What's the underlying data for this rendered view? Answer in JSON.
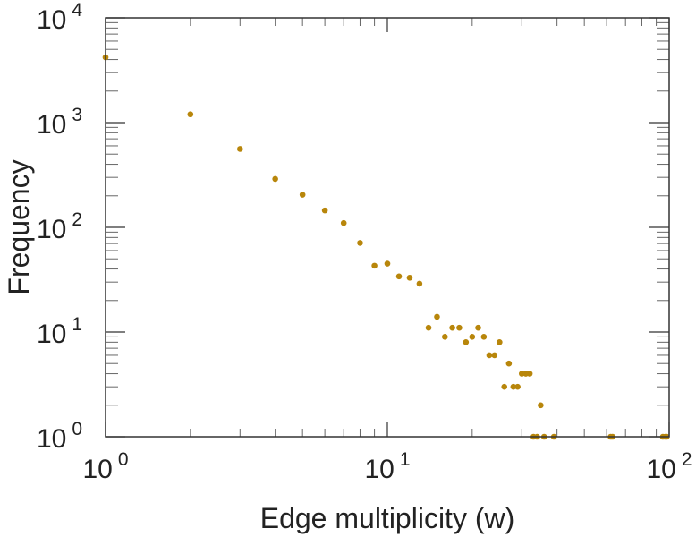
{
  "chart_data": {
    "type": "scatter",
    "xscale": "log",
    "yscale": "log",
    "xlim": [
      1,
      100
    ],
    "ylim": [
      1,
      10000
    ],
    "xlabel": "Edge multiplicity (w)",
    "ylabel": "Frequency",
    "x_ticks": [
      {
        "base": "10",
        "exp": "0",
        "value": 1
      },
      {
        "base": "10",
        "exp": "1",
        "value": 10
      },
      {
        "base": "10",
        "exp": "2",
        "value": 100
      }
    ],
    "y_ticks": [
      {
        "base": "10",
        "exp": "0",
        "value": 1
      },
      {
        "base": "10",
        "exp": "1",
        "value": 10
      },
      {
        "base": "10",
        "exp": "2",
        "value": 100
      },
      {
        "base": "10",
        "exp": "3",
        "value": 1000
      },
      {
        "base": "10",
        "exp": "4",
        "value": 10000
      }
    ],
    "grid": false,
    "marker_color": "#b8860b",
    "series": [
      {
        "points": [
          [
            1,
            4200
          ],
          [
            2,
            1200
          ],
          [
            3,
            560
          ],
          [
            4,
            290
          ],
          [
            5,
            205
          ],
          [
            6,
            145
          ],
          [
            7,
            110
          ],
          [
            8,
            71
          ],
          [
            9,
            43
          ],
          [
            10,
            45
          ],
          [
            11,
            34
          ],
          [
            12,
            33
          ],
          [
            13,
            29
          ],
          [
            14,
            11
          ],
          [
            15,
            14
          ],
          [
            16,
            9
          ],
          [
            17,
            11
          ],
          [
            18,
            11
          ],
          [
            19,
            8
          ],
          [
            20,
            9
          ],
          [
            21,
            11
          ],
          [
            22,
            9
          ],
          [
            23,
            6
          ],
          [
            24,
            6
          ],
          [
            25,
            8
          ],
          [
            26,
            3
          ],
          [
            27,
            5
          ],
          [
            28,
            3
          ],
          [
            29,
            3
          ],
          [
            30,
            4
          ],
          [
            31,
            4
          ],
          [
            32,
            4
          ],
          [
            33,
            1
          ],
          [
            34,
            1
          ],
          [
            35,
            2
          ],
          [
            36,
            1
          ],
          [
            39,
            1
          ],
          [
            62,
            1
          ],
          [
            63,
            1
          ],
          [
            95,
            1
          ],
          [
            97,
            1
          ],
          [
            98,
            1
          ]
        ]
      }
    ]
  }
}
